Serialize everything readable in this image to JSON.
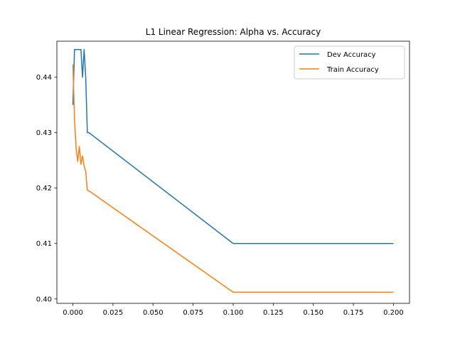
{
  "chart_data": {
    "type": "line",
    "title": "L1 Linear Regression: Alpha vs. Accuracy",
    "xlabel": "",
    "ylabel": "",
    "xlim": [
      -0.01,
      0.21
    ],
    "ylim": [
      0.3992,
      0.4465
    ],
    "xticks": [
      0.0,
      0.025,
      0.05,
      0.075,
      0.1,
      0.125,
      0.15,
      0.175,
      0.2
    ],
    "xtick_labels": [
      "0.000",
      "0.025",
      "0.050",
      "0.075",
      "0.100",
      "0.125",
      "0.150",
      "0.175",
      "0.200"
    ],
    "yticks": [
      0.4,
      0.41,
      0.42,
      0.43,
      0.44
    ],
    "ytick_labels": [
      "0.40",
      "0.41",
      "0.42",
      "0.43",
      "0.44"
    ],
    "grid": false,
    "legend": "top-right",
    "series": [
      {
        "name": "Dev Accuracy",
        "color": "#1f77b4",
        "x": [
          0.0,
          0.001,
          0.002,
          0.003,
          0.004,
          0.005,
          0.006,
          0.007,
          0.008,
          0.009,
          0.01,
          0.1,
          0.2
        ],
        "y": [
          0.435,
          0.445,
          0.445,
          0.445,
          0.445,
          0.445,
          0.44,
          0.445,
          0.44,
          0.43,
          0.43,
          0.41,
          0.41
        ]
      },
      {
        "name": "Train Accuracy",
        "color": "#ff7f0e",
        "x": [
          0.0,
          0.001,
          0.002,
          0.003,
          0.004,
          0.005,
          0.006,
          0.007,
          0.008,
          0.009,
          0.01,
          0.1,
          0.2
        ],
        "y": [
          0.4423,
          0.4325,
          0.4272,
          0.4248,
          0.4275,
          0.4243,
          0.4258,
          0.424,
          0.423,
          0.4196,
          0.4195,
          0.4012,
          0.4012
        ]
      }
    ]
  }
}
